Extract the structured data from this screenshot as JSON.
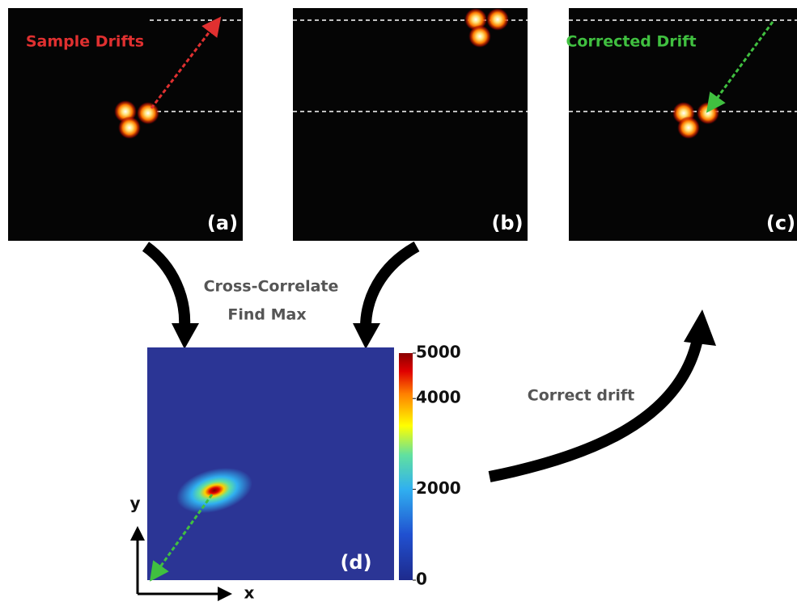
{
  "panels": [
    {
      "label": "(a)",
      "annotation": "Sample Drifts"
    },
    {
      "label": "(b)"
    },
    {
      "label": "(c)",
      "annotation": "Corrected Drift"
    },
    {
      "label": "(d)"
    }
  ],
  "step_labels": [
    "Cross-Correlate",
    "Find Max"
  ],
  "correction_label": "Correct drift",
  "axes": {
    "x": "x",
    "y": "y"
  },
  "colorbar": {
    "range": [
      0,
      5000
    ],
    "ticks": [
      0,
      2000,
      4000,
      5000
    ]
  }
}
